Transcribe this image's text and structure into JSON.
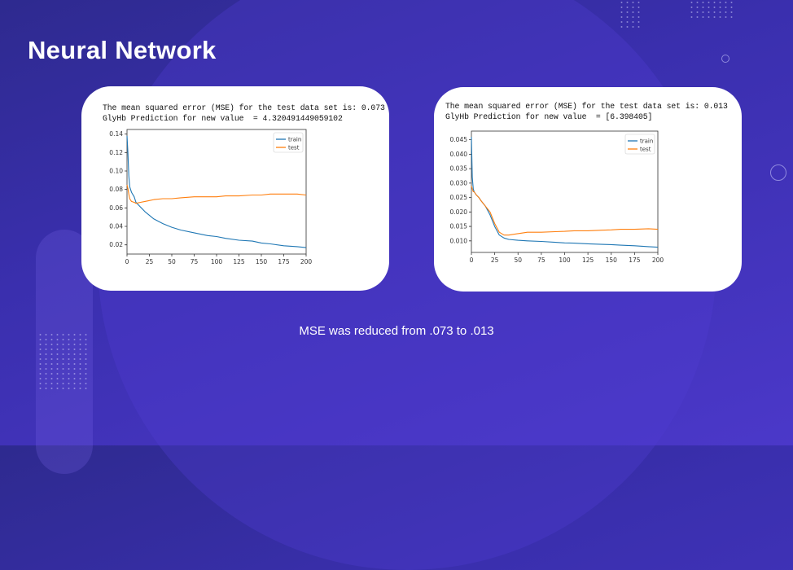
{
  "slide": {
    "title": "Neural Network",
    "caption": "MSE was reduced from .073 to .013"
  },
  "colors": {
    "train": "#1f77b4",
    "test": "#ff7f0e",
    "background": "#3a2fae",
    "card": "#ffffff"
  },
  "cards": [
    {
      "line1": "The mean squared error (MSE) for the test data set is: 0.073",
      "line2": "GlyHb Prediction for new value  = 4.320491449059102"
    },
    {
      "line1": "The mean squared error (MSE) for the test data set is: 0.013",
      "line2": "GlyHb Prediction for new value  = [6.398405]"
    }
  ],
  "chart_data": [
    {
      "type": "line",
      "xlim": [
        0,
        200
      ],
      "ylim": [
        0.01,
        0.145
      ],
      "xticks": [
        "0",
        "25",
        "50",
        "75",
        "100",
        "125",
        "150",
        "175",
        "200"
      ],
      "yticks": [
        "0.02",
        "0.04",
        "0.06",
        "0.08",
        "0.10",
        "0.12",
        "0.14"
      ],
      "legend_placement": "top-right",
      "grid": false,
      "x": [
        0,
        1,
        2,
        3,
        5,
        8,
        10,
        15,
        20,
        25,
        30,
        40,
        50,
        60,
        75,
        90,
        100,
        110,
        125,
        140,
        150,
        160,
        175,
        190,
        200
      ],
      "series": [
        {
          "name": "train",
          "values": [
            0.138,
            0.12,
            0.095,
            0.083,
            0.077,
            0.072,
            0.066,
            0.061,
            0.056,
            0.052,
            0.048,
            0.043,
            0.039,
            0.036,
            0.033,
            0.03,
            0.029,
            0.027,
            0.025,
            0.024,
            0.022,
            0.021,
            0.019,
            0.018,
            0.017
          ]
        },
        {
          "name": "test",
          "values": [
            0.085,
            0.081,
            0.075,
            0.07,
            0.067,
            0.066,
            0.065,
            0.066,
            0.067,
            0.068,
            0.069,
            0.07,
            0.07,
            0.071,
            0.072,
            0.072,
            0.072,
            0.073,
            0.073,
            0.074,
            0.074,
            0.075,
            0.075,
            0.075,
            0.074
          ]
        }
      ]
    },
    {
      "type": "line",
      "xlim": [
        0,
        200
      ],
      "ylim": [
        0.006,
        0.048
      ],
      "xticks": [
        "0",
        "25",
        "50",
        "75",
        "100",
        "125",
        "150",
        "175",
        "200"
      ],
      "yticks": [
        "0.010",
        "0.015",
        "0.020",
        "0.025",
        "0.030",
        "0.035",
        "0.040",
        "0.045"
      ],
      "legend_placement": "top-right",
      "grid": false,
      "x": [
        0,
        1,
        2,
        3,
        5,
        8,
        10,
        15,
        20,
        25,
        30,
        35,
        40,
        50,
        60,
        75,
        90,
        100,
        110,
        125,
        140,
        150,
        160,
        175,
        190,
        200
      ],
      "series": [
        {
          "name": "train",
          "values": [
            0.046,
            0.032,
            0.028,
            0.027,
            0.026,
            0.025,
            0.024,
            0.022,
            0.019,
            0.015,
            0.012,
            0.011,
            0.0105,
            0.0102,
            0.01,
            0.0098,
            0.0095,
            0.0093,
            0.0092,
            0.009,
            0.0088,
            0.0087,
            0.0085,
            0.0083,
            0.008,
            0.0078
          ]
        },
        {
          "name": "test",
          "values": [
            0.029,
            0.028,
            0.027,
            0.027,
            0.026,
            0.025,
            0.024,
            0.022,
            0.02,
            0.016,
            0.013,
            0.012,
            0.012,
            0.0125,
            0.013,
            0.013,
            0.0132,
            0.0133,
            0.0135,
            0.0135,
            0.0137,
            0.0138,
            0.014,
            0.014,
            0.0142,
            0.014
          ]
        }
      ]
    }
  ]
}
